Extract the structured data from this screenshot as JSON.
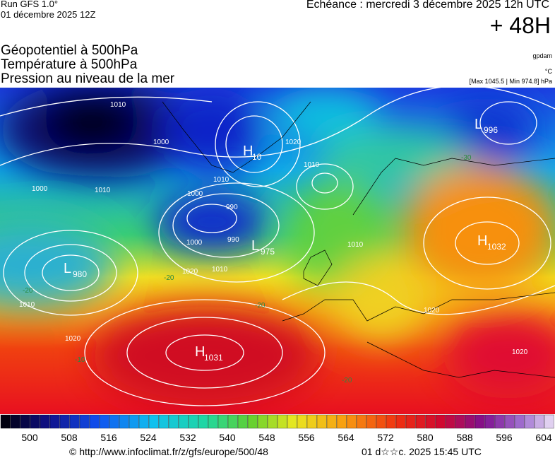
{
  "header": {
    "run": "Run GFS 1.0°",
    "run_date": "01 décembre 2025 12Z",
    "valid": "Echéance : mercredi 3 décembre 2025 12h UTC",
    "lead": "+ 48H"
  },
  "legend": {
    "lines": [
      "Géopotentiel à 500hPa",
      "Température à 500hPa",
      "Pression au niveau de la mer"
    ],
    "unit_geo": "gpdam",
    "unit_temp": "°C",
    "extremes": "[Max 1045.5 | Min 974.8] hPa"
  },
  "map": {
    "centers": [
      {
        "letter": "L",
        "value": 996
      },
      {
        "letter": "H",
        "value": 10
      },
      {
        "letter": "L",
        "value": 975
      },
      {
        "letter": "L",
        "value": 980
      },
      {
        "letter": "H",
        "value": 1032
      },
      {
        "letter": "H",
        "value": 1031
      }
    ],
    "isobar_labels": [
      1010,
      1000,
      1000,
      1010,
      1020,
      1010,
      1010,
      1000,
      990,
      990,
      1000,
      1010,
      1020,
      1010,
      1020,
      1010,
      1020,
      1020
    ],
    "temp_labels": [
      -20,
      -20,
      -20,
      -20,
      -30,
      -10
    ]
  },
  "colorbar": {
    "ticks": [
      500,
      508,
      516,
      524,
      532,
      540,
      548,
      556,
      564,
      572,
      580,
      588,
      596,
      604
    ]
  },
  "footer": {
    "source": "© http://www.infoclimat.fr/z/gfs/europe/500/48",
    "generated": "01 d☆☆c. 2025 15:45 UTC"
  }
}
